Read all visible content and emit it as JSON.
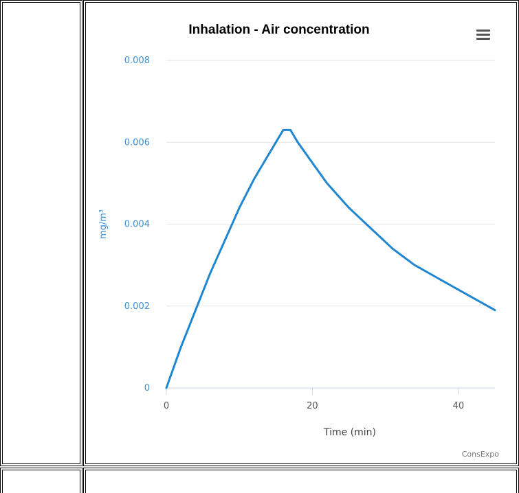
{
  "chart_data": {
    "type": "line",
    "title": "Inhalation - Air concentration",
    "xlabel": "Time (min)",
    "ylabel": "mg/m³",
    "xlim": [
      0,
      45
    ],
    "ylim": [
      0,
      0.008
    ],
    "x_ticks": [
      "0",
      "20",
      "40"
    ],
    "y_ticks": [
      "0",
      "0.002",
      "0.004",
      "0.006",
      "0.008"
    ],
    "grid": "horizontal",
    "series": [
      {
        "color": "#1f86d1",
        "x": [
          0,
          2,
          4,
          6,
          8,
          10,
          12,
          14,
          15,
          16,
          17,
          18,
          20,
          22,
          25,
          28,
          31,
          34,
          37,
          40,
          43,
          45
        ],
        "y": [
          0,
          0.001,
          0.0019,
          0.0028,
          0.0036,
          0.0044,
          0.0051,
          0.0057,
          0.006,
          0.0063,
          0.0063,
          0.006,
          0.0055,
          0.005,
          0.0044,
          0.0039,
          0.0034,
          0.003,
          0.0027,
          0.0024,
          0.0021,
          0.0019
        ]
      }
    ]
  },
  "menu": {
    "icon": "hamburger-menu-icon"
  },
  "credits": "ConsExpo"
}
